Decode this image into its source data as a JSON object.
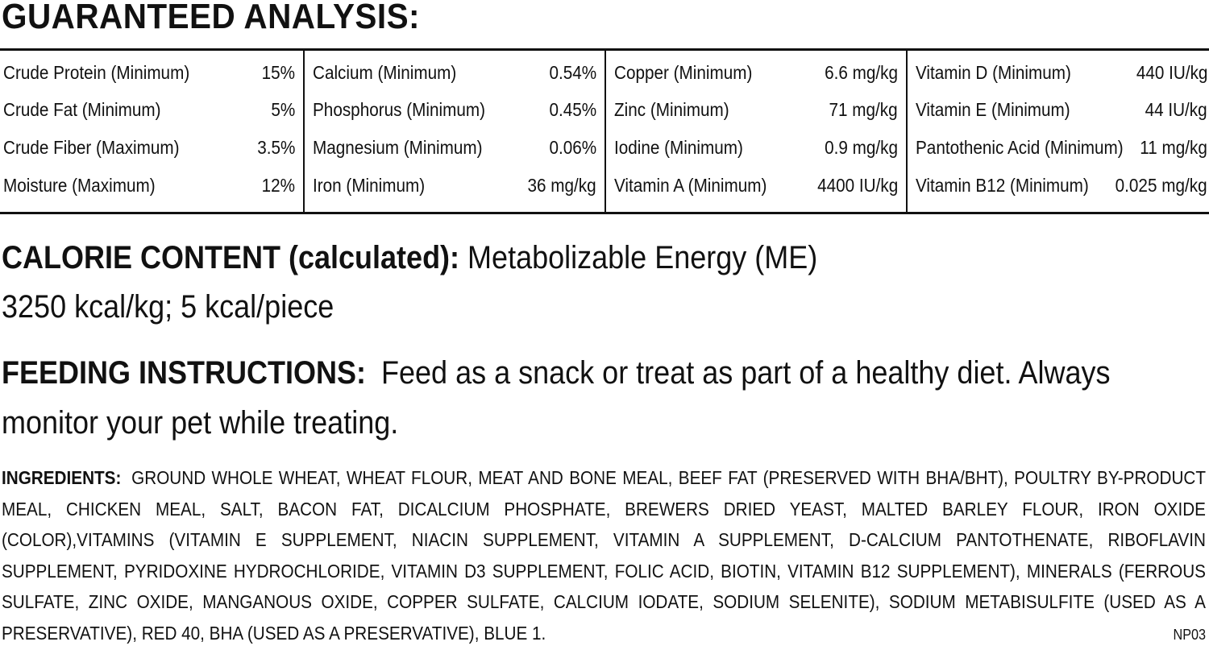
{
  "guaranteed_analysis": {
    "title": "GUARANTEED ANALYSIS:",
    "columns": [
      {
        "rows": [
          {
            "name": "Crude Protein (Minimum)",
            "value": "15%"
          },
          {
            "name": "Crude Fat (Minimum)",
            "value": "5%"
          },
          {
            "name": "Crude Fiber (Maximum)",
            "value": "3.5%"
          },
          {
            "name": "Moisture (Maximum)",
            "value": "12%"
          }
        ]
      },
      {
        "rows": [
          {
            "name": "Calcium (Minimum)",
            "value": "0.54%"
          },
          {
            "name": "Phosphorus (Minimum)",
            "value": "0.45%"
          },
          {
            "name": "Magnesium (Minimum)",
            "value": "0.06%"
          },
          {
            "name": "Iron (Minimum)",
            "value": "36 mg/kg"
          }
        ]
      },
      {
        "rows": [
          {
            "name": "Copper (Minimum)",
            "value": "6.6 mg/kg"
          },
          {
            "name": "Zinc (Minimum)",
            "value": "71 mg/kg"
          },
          {
            "name": "Iodine (Minimum)",
            "value": "0.9 mg/kg"
          },
          {
            "name": "Vitamin A (Minimum)",
            "value": "4400 IU/kg"
          }
        ]
      },
      {
        "rows": [
          {
            "name": "Vitamin D (Minimum)",
            "value": "440 IU/kg"
          },
          {
            "name": "Vitamin E (Minimum)",
            "value": "44 IU/kg"
          },
          {
            "name": "Pantothenic Acid (Minimum)",
            "value": "11 mg/kg"
          },
          {
            "name": "Vitamin B12 (Minimum)",
            "value": "0.025 mg/kg"
          }
        ]
      }
    ]
  },
  "calorie": {
    "heading": "CALORIE CONTENT (calculated):",
    "subheading": "Metabolizable Energy (ME)",
    "values": "3250 kcal/kg; 5 kcal/piece"
  },
  "feeding": {
    "heading": "FEEDING INSTRUCTIONS:",
    "text": "Feed as a snack or treat as part of a healthy diet. Always monitor your pet while treating."
  },
  "ingredients": {
    "heading": "INGREDIENTS:",
    "text": "GROUND WHOLE WHEAT, WHEAT FLOUR, MEAT AND BONE MEAL, BEEF FAT (PRESERVED WITH BHA/BHT), POULTRY BY-PRODUCT MEAL, CHICKEN MEAL, SALT, BACON FAT, DICALCIUM PHOSPHATE, BREWERS DRIED YEAST, MALTED BARLEY FLOUR, IRON OXIDE (COLOR),VITAMINS (VITAMIN E SUPPLEMENT, NIACIN SUPPLEMENT, VITAMIN A SUPPLEMENT, D-CALCIUM PANTOTHENATE, RIBOFLAVIN SUPPLEMENT, PYRIDOXINE HYDROCHLORIDE, VITAMIN D3 SUPPLEMENT, FOLIC ACID, BIOTIN, VITAMIN B12 SUPPLEMENT), MINERALS (FERROUS SULFATE, ZINC OXIDE, MANGANOUS OXIDE, COPPER SULFATE, CALCIUM IODATE, SODIUM SELENITE), SODIUM METABISULFITE (USED AS A PRESERVATIVE), RED 40, BHA (USED AS A PRESERVATIVE), BLUE 1."
  },
  "product_code": "NP03",
  "colors": {
    "text": "#111111",
    "background": "#ffffff"
  }
}
